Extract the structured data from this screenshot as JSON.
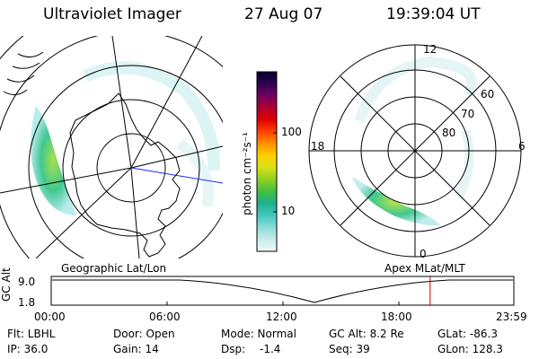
{
  "header": {
    "title": "Ultraviolet Imager",
    "date": "27 Aug 07",
    "time": "19:39:04 UT"
  },
  "colorbar": {
    "unit_label": "photon cm⁻²s⁻¹",
    "ticks": [
      "100",
      "10"
    ],
    "gradient_colors": [
      "#f0f8f8",
      "#c8ecec",
      "#8cdcd8",
      "#40c8c0",
      "#20b090",
      "#40c040",
      "#90d020",
      "#d8e018",
      "#ffd000",
      "#ff9000",
      "#ff4000",
      "#e00000",
      "#b00030",
      "#700060",
      "#300050",
      "#000030"
    ]
  },
  "left_map": {
    "coordinate_label": "Geographic Lat/Lon"
  },
  "right_map": {
    "coordinate_label": "Apex  MLat/MLT",
    "lat_labels": [
      "60",
      "70",
      "80"
    ],
    "mlt_labels": [
      "12",
      "18",
      "6",
      "0"
    ]
  },
  "altitude_plot": {
    "ylabel": "GC Alt",
    "yticks": [
      "9.0",
      "1.8"
    ],
    "xticks": [
      "00:00",
      "06:00",
      "12:00",
      "18:00",
      "23:59"
    ],
    "marker_time": "19:39",
    "marker_color": "#cc0000"
  },
  "footer": {
    "filter": "Flt: LBHL",
    "door": "Door: Open",
    "mode": "Mode: Normal",
    "gc_alt": "GC Alt: 8.2 Re",
    "glat": "GLat: -86.3",
    "ip": "IP: 36.0",
    "gain": "Gain: 14",
    "dsp_label": "Dsp:",
    "dsp_value": "-1.4",
    "seq": "Seq: 39",
    "glon": "GLon: 128.3"
  }
}
